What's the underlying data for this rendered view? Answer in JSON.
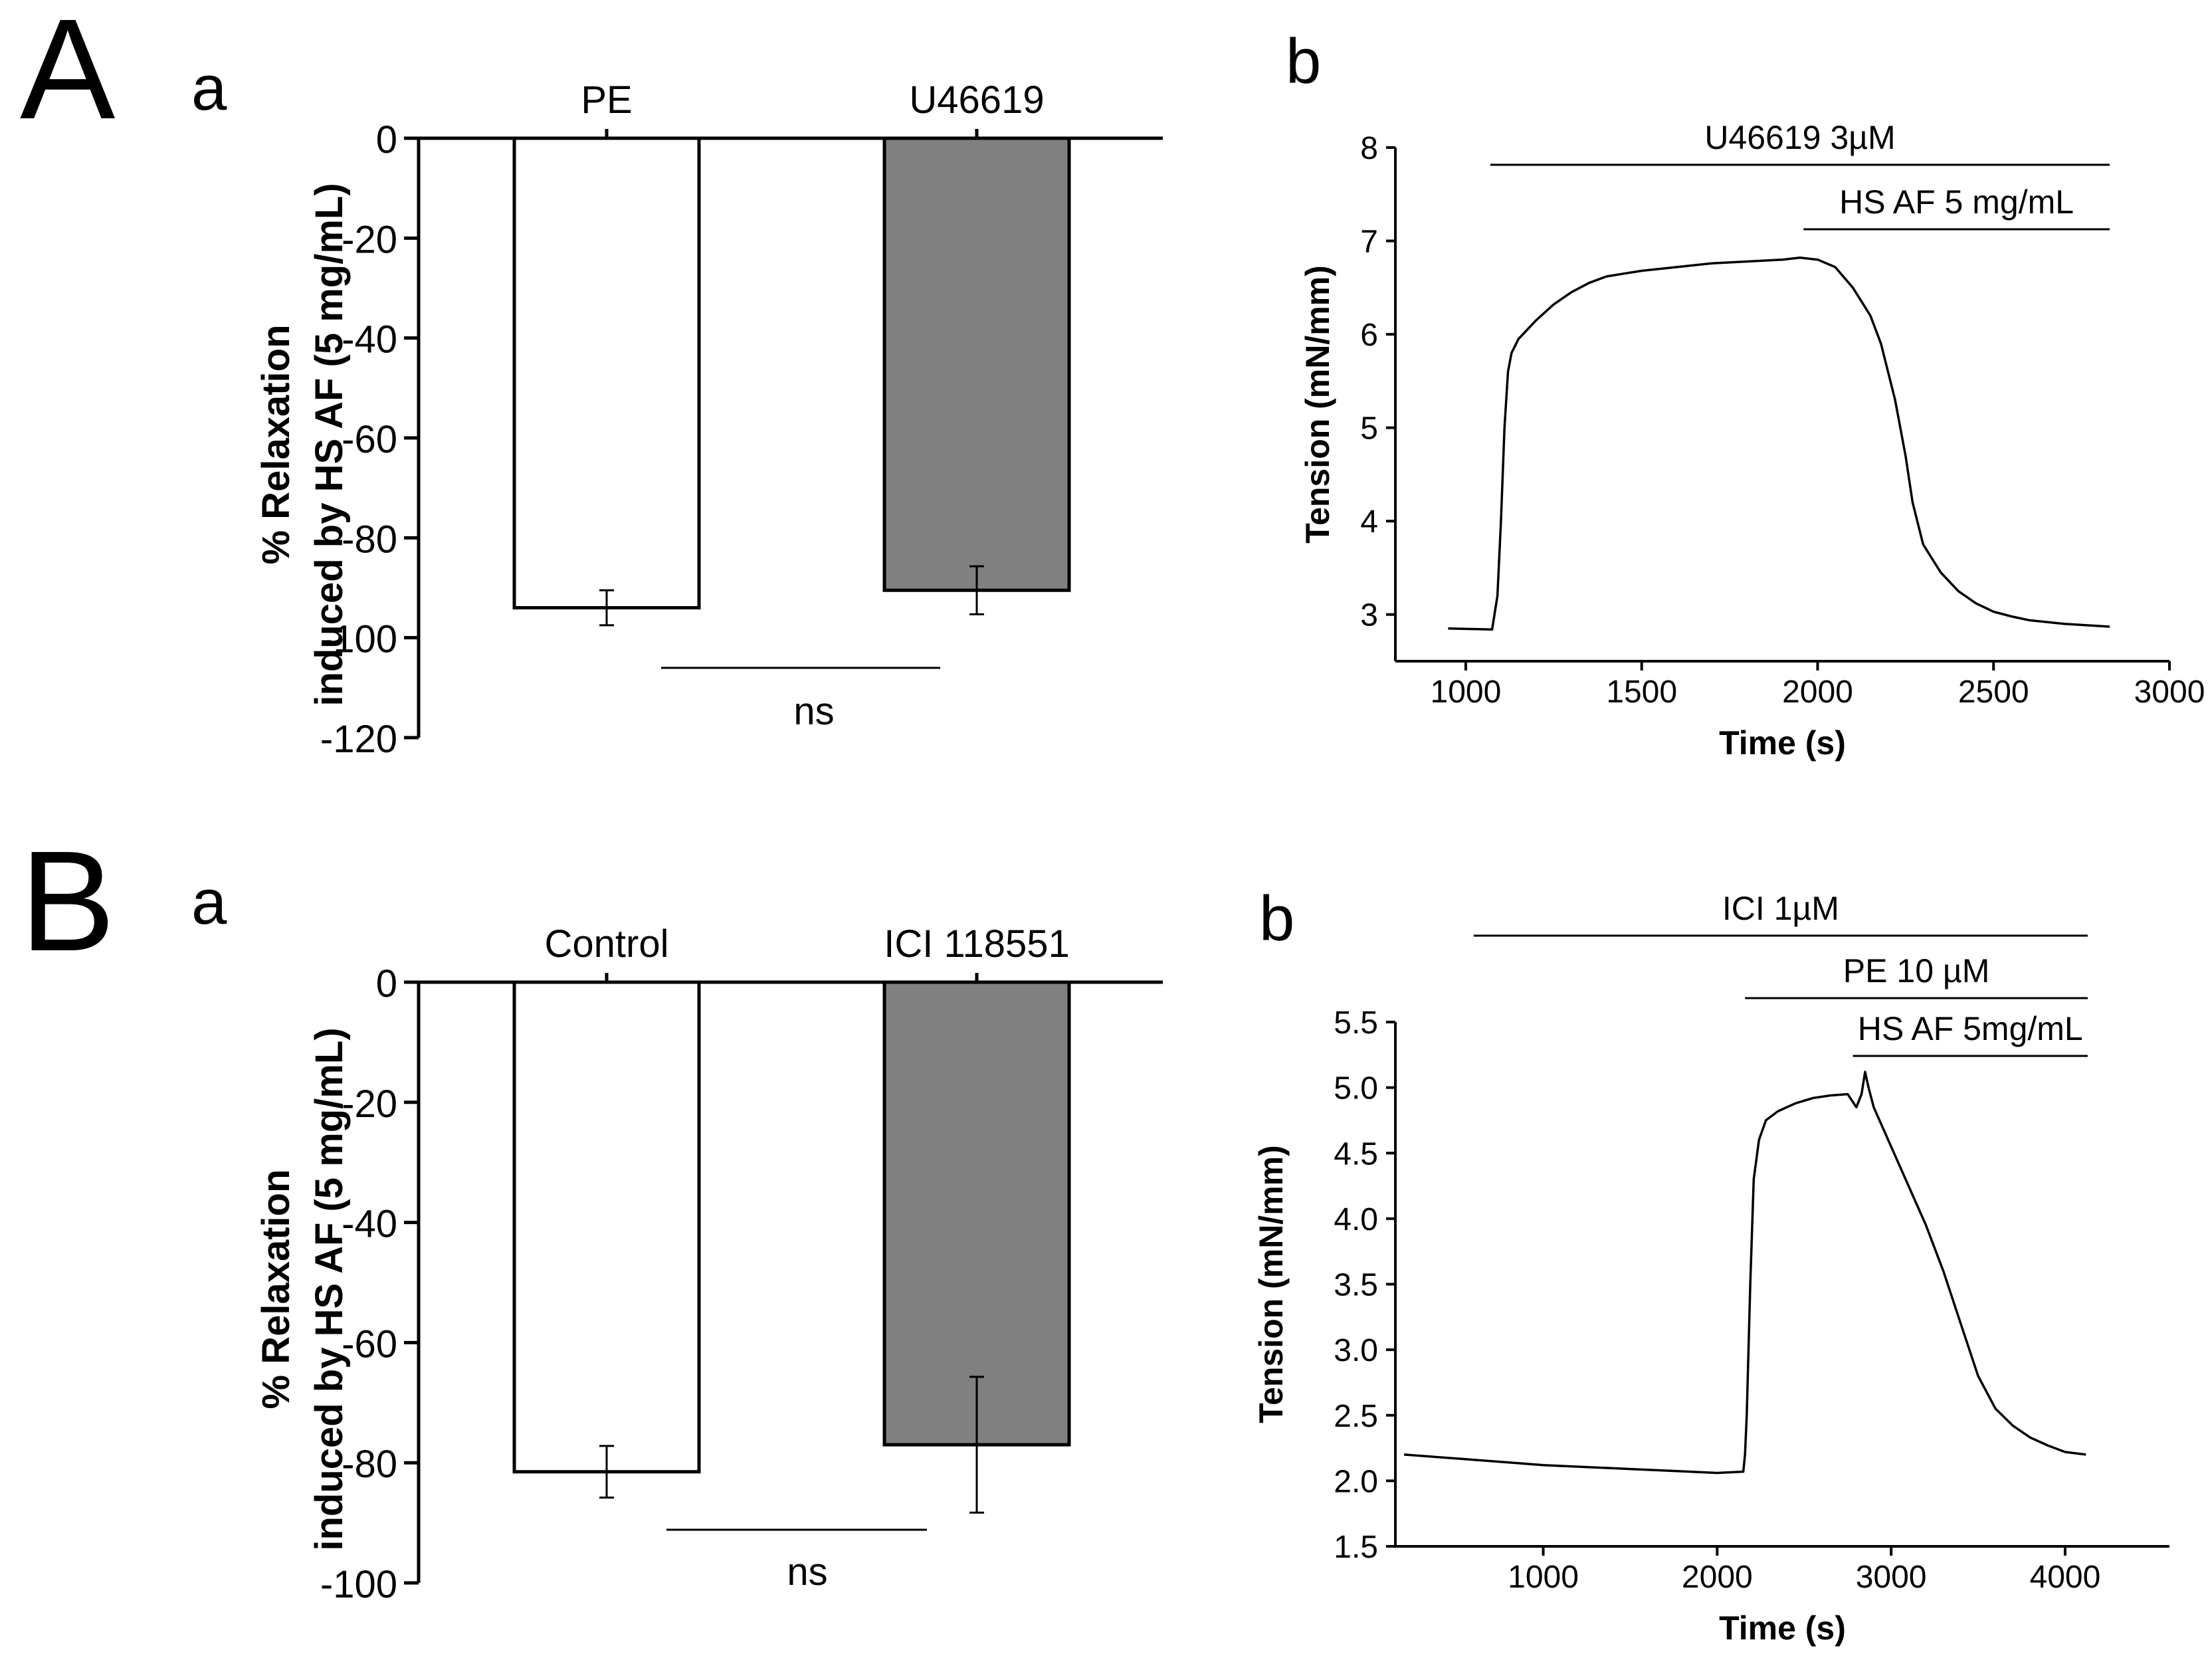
{
  "panel_labels": {
    "A": "A",
    "B": "B",
    "Aa": "a",
    "Ab": "b",
    "Ba": "a",
    "Bb": "b"
  },
  "colors": {
    "control_bar": "#ffffff",
    "treated_bar": "#808080",
    "ink": "#000000"
  },
  "chart_data": [
    {
      "id": "Aa",
      "type": "bar",
      "ylabel_line1": "% Relaxation",
      "ylabel_line2": "induced by HS AF (5 mg/mL)",
      "categories": [
        "PE",
        "U46619"
      ],
      "values": [
        -94,
        -90.5
      ],
      "errors": [
        3.5,
        4.8
      ],
      "yticks": [
        0,
        -20,
        -40,
        -60,
        -80,
        -100,
        -120
      ],
      "ylim": [
        -120,
        0
      ],
      "significance": "ns"
    },
    {
      "id": "Ab",
      "type": "line",
      "xlabel": "Time (s)",
      "ylabel": "Tension (mN/mm)",
      "xticks": [
        1000,
        1500,
        2000,
        2500,
        3000
      ],
      "yticks": [
        3,
        4,
        5,
        6,
        7,
        8
      ],
      "xlim": [
        800,
        3000
      ],
      "ylim": [
        2.5,
        8
      ],
      "annotations": [
        {
          "label": "U46619 3µM",
          "x_start": 1070,
          "x_end": 2830
        },
        {
          "label": "HS AF 5 mg/mL",
          "x_start": 1960,
          "x_end": 2830
        }
      ],
      "x": [
        950,
        1075,
        1090,
        1100,
        1110,
        1120,
        1130,
        1150,
        1200,
        1250,
        1300,
        1350,
        1400,
        1450,
        1500,
        1600,
        1700,
        1800,
        1900,
        1950,
        2000,
        2050,
        2100,
        2150,
        2180,
        2200,
        2220,
        2250,
        2270,
        2300,
        2350,
        2400,
        2450,
        2500,
        2550,
        2600,
        2700,
        2830
      ],
      "values": [
        2.85,
        2.84,
        3.2,
        4.0,
        5.0,
        5.6,
        5.8,
        5.95,
        6.15,
        6.32,
        6.45,
        6.55,
        6.62,
        6.65,
        6.68,
        6.72,
        6.76,
        6.78,
        6.8,
        6.82,
        6.8,
        6.72,
        6.5,
        6.2,
        5.9,
        5.6,
        5.3,
        4.7,
        4.2,
        3.75,
        3.45,
        3.25,
        3.12,
        3.03,
        2.98,
        2.94,
        2.9,
        2.87
      ]
    },
    {
      "id": "Ba",
      "type": "bar",
      "ylabel_line1": "% Relaxation",
      "ylabel_line2": "induced by HS AF (5 mg/mL)",
      "categories": [
        "Control",
        "ICI 118551"
      ],
      "values": [
        -81.5,
        -77
      ],
      "errors": [
        4.3,
        11.3
      ],
      "yticks": [
        0,
        -20,
        -40,
        -60,
        -80,
        -100
      ],
      "ylim": [
        -100,
        0
      ],
      "significance": "ns"
    },
    {
      "id": "Bb",
      "type": "line",
      "xlabel": "Time (s)",
      "ylabel": "Tension (mN/mm)",
      "xticks": [
        1000,
        2000,
        3000,
        4000
      ],
      "yticks": [
        "1.5",
        "2.0",
        "2.5",
        "3.0",
        "3.5",
        "4.0",
        "4.5",
        "5.0",
        "5.5"
      ],
      "xlim": [
        150,
        4600
      ],
      "ylim": [
        1.5,
        5.5
      ],
      "annotations": [
        {
          "label": "ICI 1µM",
          "x_start": 600,
          "x_end": 4130
        },
        {
          "label": "PE 10 µM",
          "x_start": 2160,
          "x_end": 4130
        },
        {
          "label": "HS AF 5mg/mL",
          "x_start": 2780,
          "x_end": 4130
        }
      ],
      "x": [
        200,
        500,
        1000,
        1500,
        2000,
        2150,
        2160,
        2170,
        2190,
        2210,
        2240,
        2280,
        2350,
        2450,
        2550,
        2650,
        2750,
        2800,
        2830,
        2850,
        2870,
        2900,
        2950,
        3000,
        3100,
        3200,
        3300,
        3400,
        3500,
        3600,
        3700,
        3800,
        3900,
        4000,
        4120
      ],
      "values": [
        2.2,
        2.17,
        2.12,
        2.09,
        2.06,
        2.07,
        2.2,
        2.5,
        3.5,
        4.3,
        4.6,
        4.75,
        4.82,
        4.88,
        4.92,
        4.94,
        4.95,
        4.85,
        4.95,
        5.12,
        5.0,
        4.85,
        4.7,
        4.55,
        4.25,
        3.95,
        3.6,
        3.2,
        2.8,
        2.55,
        2.42,
        2.33,
        2.27,
        2.22,
        2.2
      ]
    }
  ]
}
